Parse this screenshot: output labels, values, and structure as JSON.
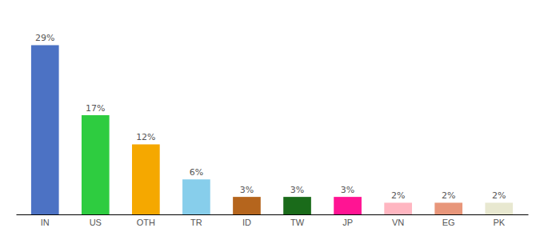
{
  "chart_data": {
    "type": "bar",
    "categories": [
      "IN",
      "US",
      "OTH",
      "TR",
      "ID",
      "TW",
      "JP",
      "VN",
      "EG",
      "PK"
    ],
    "values": [
      29,
      17,
      12,
      6,
      3,
      3,
      3,
      2,
      2,
      2
    ],
    "value_labels": [
      "29%",
      "17%",
      "12%",
      "6%",
      "3%",
      "3%",
      "3%",
      "2%",
      "2%",
      "2%"
    ],
    "colors": [
      "#4c72c4",
      "#2ecc40",
      "#f5a800",
      "#87ceeb",
      "#b5651d",
      "#1a6b1a",
      "#ff1493",
      "#ffb6c1",
      "#e8967a",
      "#e8e8d0"
    ],
    "ylim": [
      0,
      34
    ],
    "data_labels": true,
    "tick_labels": "x"
  }
}
